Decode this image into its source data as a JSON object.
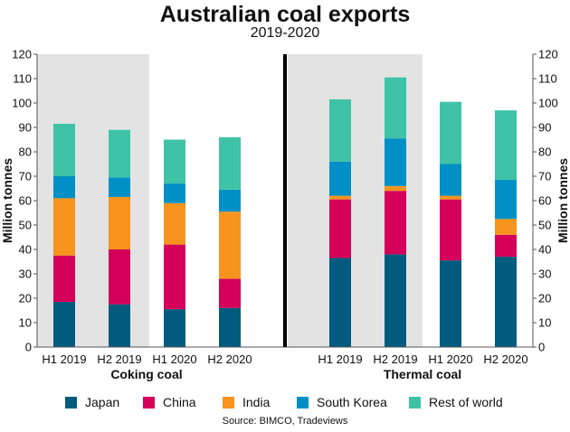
{
  "title": "Australian coal exports",
  "subtitle": "2019-2020",
  "source": "Source: BIMCO, Tradeviews",
  "colors": {
    "Japan": "#005b7f",
    "China": "#d4005a",
    "India": "#f7941d",
    "South Korea": "#0090c5",
    "Rest of world": "#3fc3a7",
    "shade": "#e3e3e3",
    "divider": "#000000",
    "gridline": "#555555"
  },
  "chart_data": {
    "type": "bar",
    "stacked": true,
    "ylabel": "Million tonnes",
    "ylim": [
      0,
      120
    ],
    "yticks": [
      0,
      10,
      20,
      30,
      40,
      50,
      60,
      70,
      80,
      90,
      100,
      110,
      120
    ],
    "groups": [
      {
        "name": "Coking coal",
        "categories": [
          "H1 2019",
          "H2 2019",
          "H1 2020",
          "H2 2020"
        ],
        "series": [
          {
            "name": "Japan",
            "values": [
              18.5,
              17.5,
              15.5,
              16
            ]
          },
          {
            "name": "China",
            "values": [
              19,
              22.5,
              26.5,
              12
            ]
          },
          {
            "name": "India",
            "values": [
              23.5,
              21.5,
              17,
              27.5
            ]
          },
          {
            "name": "South Korea",
            "values": [
              9,
              8,
              8,
              9
            ]
          },
          {
            "name": "Rest of world",
            "values": [
              21.5,
              19.5,
              18,
              21.5
            ]
          }
        ]
      },
      {
        "name": "Thermal coal",
        "categories": [
          "H1 2019",
          "H2 2019",
          "H1 2020",
          "H2 2020"
        ],
        "series": [
          {
            "name": "Japan",
            "values": [
              36.5,
              38,
              35.5,
              37
            ]
          },
          {
            "name": "China",
            "values": [
              24,
              26,
              25,
              9
            ]
          },
          {
            "name": "India",
            "values": [
              1.5,
              2,
              1.5,
              6.5
            ]
          },
          {
            "name": "South Korea",
            "values": [
              14,
              19.5,
              13,
              16
            ]
          },
          {
            "name": "Rest of world",
            "values": [
              25.5,
              25,
              25.5,
              28.5
            ]
          }
        ]
      }
    ],
    "legend": [
      "Japan",
      "China",
      "India",
      "South Korea",
      "Rest of world"
    ],
    "legend_position": "bottom",
    "grid": false
  }
}
